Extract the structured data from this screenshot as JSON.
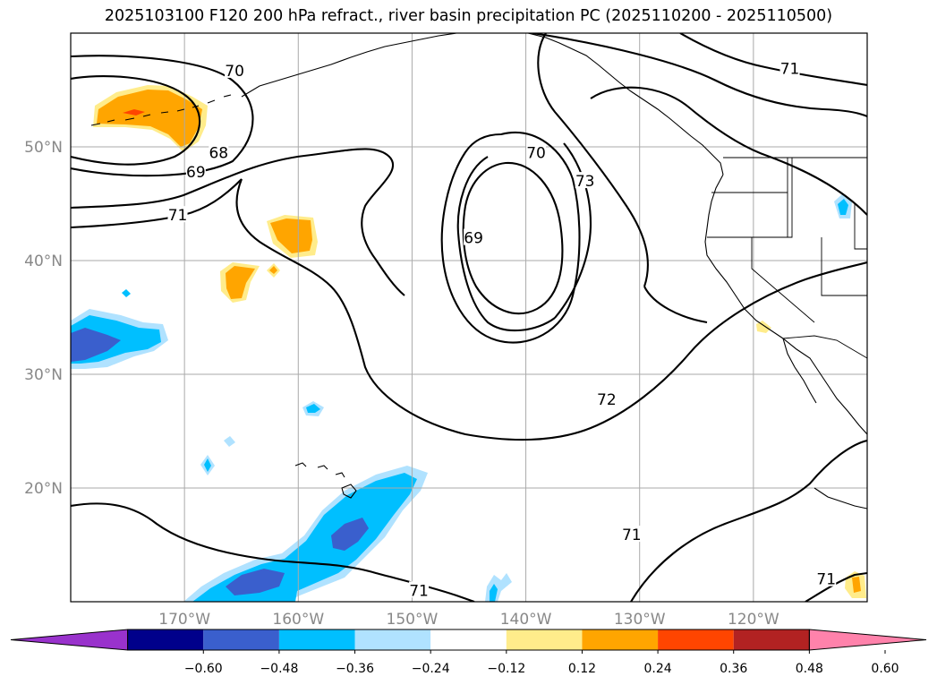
{
  "title": "2025103100 F120 200 hPa refract., river basin precipitation PC (2025110200 - 2025110500)",
  "map": {
    "projection": "PlateCarree",
    "lon_range": [
      -180,
      -110
    ],
    "lat_range": [
      10,
      60
    ],
    "lon_ticks": [
      {
        "lon": -170,
        "label": "170°W"
      },
      {
        "lon": -160,
        "label": "160°W"
      },
      {
        "lon": -150,
        "label": "150°W"
      },
      {
        "lon": -140,
        "label": "140°W"
      },
      {
        "lon": -130,
        "label": "130°W"
      },
      {
        "lon": -120,
        "label": "120°W"
      }
    ],
    "lat_ticks": [
      {
        "lat": 50,
        "label": "50°N"
      },
      {
        "lat": 40,
        "label": "40°N"
      },
      {
        "lat": 30,
        "label": "30°N"
      },
      {
        "lat": 20,
        "label": "20°N"
      }
    ],
    "gridlines": true,
    "gridline_color": "#aaaaaa",
    "contour_field": "200 hPa refractivity",
    "contour_labels": [
      {
        "value": "70",
        "lon": -165.6,
        "lat": 56.7
      },
      {
        "value": "68",
        "lon": -167.0,
        "lat": 49.5
      },
      {
        "value": "69",
        "lon": -169.0,
        "lat": 47.8
      },
      {
        "value": "71",
        "lon": -170.6,
        "lat": 44.0
      },
      {
        "value": "70",
        "lon": -139.1,
        "lat": 49.5
      },
      {
        "value": "73",
        "lon": -134.8,
        "lat": 47.0
      },
      {
        "value": "69",
        "lon": -144.6,
        "lat": 42.0
      },
      {
        "value": "71",
        "lon": -116.8,
        "lat": 56.9
      },
      {
        "value": "72",
        "lon": -132.9,
        "lat": 27.8
      },
      {
        "value": "71",
        "lon": -130.7,
        "lat": 15.9
      },
      {
        "value": "71",
        "lon": -149.4,
        "lat": 11.0
      },
      {
        "value": "71",
        "lon": -113.6,
        "lat": 12.0
      }
    ]
  },
  "colorbar": {
    "ticks": [
      "−0.60",
      "−0.48",
      "−0.36",
      "−0.24",
      "−0.12",
      "0.12",
      "0.24",
      "0.36",
      "0.48",
      "0.60"
    ],
    "colors": [
      "#9932cc",
      "#00008b",
      "#3a5fcd",
      "#00bfff",
      "#b0e2ff",
      "#ffffff",
      "#ffec8b",
      "#ffa500",
      "#ff4500",
      "#b22222",
      "#ff82ab"
    ]
  },
  "precip_pc_colors": {
    "light_blue": "#b0e2ff",
    "blue": "#00bfff",
    "royal_blue": "#3a5fcd",
    "light_yellow": "#ffec8b",
    "orange": "#ffa500",
    "red_orange": "#ff4500"
  }
}
